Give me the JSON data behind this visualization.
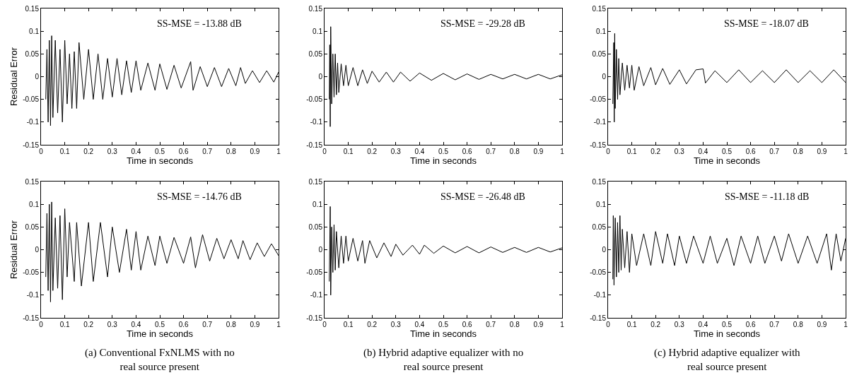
{
  "chart_data": [
    {
      "type": "line",
      "ylabel": "Residual Error",
      "xlabel": "Time in seconds",
      "annotations": [
        "SS-MSE = -13.88 dB"
      ],
      "xlim": [
        0,
        1
      ],
      "ylim": [
        -0.15,
        0.15
      ],
      "xticks": [
        0,
        0.1,
        0.2,
        0.3,
        0.4,
        0.5,
        0.6,
        0.7,
        0.8,
        0.9,
        1
      ],
      "yticks": [
        -0.15,
        -0.1,
        -0.05,
        0,
        0.05,
        0.1,
        0.15
      ],
      "marker": "none",
      "line_style": "solid",
      "series": [
        {
          "color": "#000000",
          "x": [
            0.02,
            0.025,
            0.03,
            0.035,
            0.04,
            0.045,
            0.05,
            0.06,
            0.07,
            0.08,
            0.09,
            0.1,
            0.11,
            0.12,
            0.13,
            0.14,
            0.15,
            0.16,
            0.18,
            0.2,
            0.22,
            0.24,
            0.26,
            0.28,
            0.3,
            0.32,
            0.34,
            0.36,
            0.38,
            0.4,
            0.42,
            0.45,
            0.48,
            0.5,
            0.53,
            0.56,
            0.59,
            0.63,
            0.64,
            0.67,
            0.7,
            0.73,
            0.76,
            0.79,
            0.82,
            0.84,
            0.86,
            0.89,
            0.92,
            0.95,
            0.98,
            1.0
          ],
          "values": [
            -0.05,
            0.06,
            -0.1,
            0.08,
            -0.108,
            0.09,
            -0.09,
            0.08,
            -0.08,
            0.06,
            -0.1,
            0.08,
            -0.06,
            0.05,
            -0.07,
            0.055,
            -0.07,
            0.075,
            -0.05,
            0.06,
            -0.05,
            0.05,
            -0.05,
            0.04,
            -0.045,
            0.04,
            -0.04,
            0.035,
            -0.035,
            0.035,
            -0.03,
            0.03,
            -0.03,
            0.028,
            -0.028,
            0.025,
            -0.025,
            0.033,
            -0.03,
            0.022,
            -0.022,
            0.02,
            -0.022,
            0.018,
            -0.02,
            0.02,
            -0.015,
            0.013,
            -0.013,
            0.013,
            -0.012,
            0.01
          ]
        }
      ]
    },
    {
      "type": "line",
      "xlabel": "Time in seconds",
      "annotations": [
        "SS-MSE = -29.28 dB"
      ],
      "xlim": [
        0,
        1
      ],
      "ylim": [
        -0.15,
        0.15
      ],
      "xticks": [
        0,
        0.1,
        0.2,
        0.3,
        0.4,
        0.5,
        0.6,
        0.7,
        0.8,
        0.9,
        1
      ],
      "yticks": [
        -0.15,
        -0.1,
        -0.05,
        0,
        0.05,
        0.1,
        0.15
      ],
      "marker": "none",
      "line_style": "solid",
      "series": [
        {
          "color": "#000000",
          "x": [
            0.02,
            0.022,
            0.024,
            0.026,
            0.03,
            0.035,
            0.04,
            0.045,
            0.05,
            0.055,
            0.06,
            0.07,
            0.08,
            0.09,
            0.1,
            0.12,
            0.14,
            0.16,
            0.18,
            0.2,
            0.23,
            0.26,
            0.29,
            0.32,
            0.36,
            0.4,
            0.45,
            0.5,
            0.55,
            0.6,
            0.65,
            0.7,
            0.75,
            0.8,
            0.85,
            0.9,
            0.95,
            1.0
          ],
          "values": [
            -0.05,
            0.07,
            -0.11,
            0.11,
            -0.06,
            0.05,
            -0.045,
            0.05,
            -0.04,
            0.03,
            -0.035,
            0.028,
            -0.02,
            0.025,
            -0.02,
            0.02,
            -0.02,
            0.015,
            -0.015,
            0.012,
            -0.012,
            0.01,
            -0.012,
            0.01,
            -0.01,
            0.008,
            -0.008,
            0.007,
            -0.007,
            0.006,
            -0.006,
            0.005,
            -0.005,
            0.005,
            -0.005,
            0.005,
            -0.005,
            0.004
          ]
        }
      ]
    },
    {
      "type": "line",
      "xlabel": "Time in seconds",
      "annotations": [
        "SS-MSE = -18.07 dB"
      ],
      "xlim": [
        0,
        1
      ],
      "ylim": [
        -0.15,
        0.15
      ],
      "xticks": [
        0,
        0.1,
        0.2,
        0.3,
        0.4,
        0.5,
        0.6,
        0.7,
        0.8,
        0.9,
        1
      ],
      "yticks": [
        -0.15,
        -0.1,
        -0.05,
        0,
        0.05,
        0.1,
        0.15
      ],
      "marker": "none",
      "line_style": "solid",
      "series": [
        {
          "color": "#000000",
          "x": [
            0.02,
            0.024,
            0.026,
            0.028,
            0.03,
            0.035,
            0.04,
            0.045,
            0.05,
            0.06,
            0.07,
            0.08,
            0.09,
            0.1,
            0.11,
            0.13,
            0.15,
            0.18,
            0.2,
            0.23,
            0.26,
            0.3,
            0.33,
            0.37,
            0.4,
            0.41,
            0.45,
            0.5,
            0.55,
            0.6,
            0.65,
            0.7,
            0.75,
            0.8,
            0.85,
            0.9,
            0.95,
            1.0
          ],
          "values": [
            -0.06,
            0.075,
            -0.1,
            0.095,
            -0.07,
            0.06,
            -0.05,
            0.04,
            -0.04,
            0.03,
            -0.03,
            0.025,
            -0.025,
            0.025,
            -0.03,
            0.022,
            -0.02,
            0.02,
            -0.018,
            0.018,
            -0.017,
            0.015,
            -0.016,
            0.015,
            0.017,
            -0.014,
            0.013,
            -0.013,
            0.015,
            -0.013,
            0.013,
            -0.013,
            0.015,
            -0.013,
            0.013,
            -0.013,
            0.015,
            -0.013
          ]
        }
      ]
    },
    {
      "type": "line",
      "ylabel": "Residual Error",
      "xlabel": "Time in seconds",
      "annotations": [
        "SS-MSE = -14.76 dB",
        "(a) Conventional FxNLMS with no\nreal source present"
      ],
      "xlim": [
        0,
        1
      ],
      "ylim": [
        -0.15,
        0.15
      ],
      "xticks": [
        0,
        0.1,
        0.2,
        0.3,
        0.4,
        0.5,
        0.6,
        0.7,
        0.8,
        0.9,
        1
      ],
      "yticks": [
        -0.15,
        -0.1,
        -0.05,
        0,
        0.05,
        0.1,
        0.15
      ],
      "marker": "none",
      "line_style": "solid",
      "series": [
        {
          "color": "#000000",
          "x": [
            0.02,
            0.025,
            0.03,
            0.035,
            0.04,
            0.045,
            0.05,
            0.06,
            0.07,
            0.08,
            0.09,
            0.1,
            0.11,
            0.12,
            0.14,
            0.15,
            0.17,
            0.2,
            0.22,
            0.25,
            0.28,
            0.3,
            0.33,
            0.36,
            0.38,
            0.4,
            0.42,
            0.45,
            0.48,
            0.5,
            0.53,
            0.56,
            0.6,
            0.63,
            0.65,
            0.68,
            0.71,
            0.74,
            0.77,
            0.8,
            0.83,
            0.85,
            0.88,
            0.91,
            0.94,
            0.97,
            1.0
          ],
          "values": [
            -0.06,
            0.08,
            -0.09,
            0.1,
            -0.115,
            0.105,
            -0.09,
            0.07,
            -0.085,
            0.075,
            -0.11,
            0.09,
            -0.06,
            0.06,
            -0.07,
            0.06,
            -0.08,
            0.06,
            -0.07,
            0.06,
            -0.06,
            0.05,
            -0.05,
            0.045,
            -0.045,
            0.04,
            -0.045,
            0.03,
            -0.035,
            0.03,
            -0.03,
            0.027,
            -0.03,
            0.028,
            -0.04,
            0.033,
            -0.025,
            0.025,
            -0.02,
            0.022,
            -0.02,
            0.02,
            -0.022,
            0.015,
            -0.015,
            0.013,
            -0.013
          ]
        }
      ]
    },
    {
      "type": "line",
      "xlabel": "Time in seconds",
      "annotations": [
        "SS-MSE = -26.48 dB",
        "(b) Hybrid adaptive equalizer with no\nreal source present"
      ],
      "xlim": [
        0,
        1
      ],
      "ylim": [
        -0.15,
        0.15
      ],
      "xticks": [
        0,
        0.1,
        0.2,
        0.3,
        0.4,
        0.5,
        0.6,
        0.7,
        0.8,
        0.9,
        1
      ],
      "yticks": [
        -0.15,
        -0.1,
        -0.05,
        0,
        0.05,
        0.1,
        0.15
      ],
      "marker": "none",
      "line_style": "solid",
      "series": [
        {
          "color": "#000000",
          "x": [
            0.02,
            0.024,
            0.026,
            0.03,
            0.035,
            0.04,
            0.045,
            0.05,
            0.06,
            0.07,
            0.08,
            0.09,
            0.1,
            0.12,
            0.14,
            0.16,
            0.17,
            0.19,
            0.22,
            0.25,
            0.28,
            0.3,
            0.33,
            0.37,
            0.4,
            0.42,
            0.46,
            0.5,
            0.55,
            0.6,
            0.65,
            0.7,
            0.75,
            0.8,
            0.85,
            0.9,
            0.95,
            1.0
          ],
          "values": [
            -0.07,
            0.095,
            -0.1,
            0.05,
            -0.05,
            0.055,
            -0.045,
            0.04,
            -0.04,
            0.03,
            -0.03,
            0.03,
            -0.025,
            0.025,
            -0.025,
            0.02,
            -0.03,
            0.02,
            -0.018,
            0.015,
            -0.015,
            0.012,
            -0.012,
            0.01,
            -0.01,
            0.01,
            -0.008,
            0.008,
            -0.007,
            0.007,
            -0.007,
            0.006,
            -0.006,
            0.005,
            -0.006,
            0.005,
            -0.005,
            0.004
          ]
        }
      ]
    },
    {
      "type": "line",
      "xlabel": "Time in seconds",
      "annotations": [
        "SS-MSE = -11.18 dB",
        "(c) Hybrid adaptive equalizer with\nreal source present"
      ],
      "xlim": [
        0,
        1
      ],
      "ylim": [
        -0.15,
        0.15
      ],
      "xticks": [
        0,
        0.1,
        0.2,
        0.3,
        0.4,
        0.5,
        0.6,
        0.7,
        0.8,
        0.9,
        1
      ],
      "yticks": [
        -0.15,
        -0.1,
        -0.05,
        0,
        0.05,
        0.1,
        0.15
      ],
      "marker": "none",
      "line_style": "solid",
      "series": [
        {
          "color": "#000000",
          "x": [
            0.02,
            0.022,
            0.025,
            0.03,
            0.035,
            0.04,
            0.045,
            0.05,
            0.055,
            0.06,
            0.07,
            0.08,
            0.09,
            0.1,
            0.12,
            0.15,
            0.18,
            0.2,
            0.23,
            0.25,
            0.28,
            0.3,
            0.33,
            0.36,
            0.4,
            0.43,
            0.46,
            0.5,
            0.53,
            0.56,
            0.6,
            0.63,
            0.66,
            0.7,
            0.73,
            0.76,
            0.8,
            0.84,
            0.88,
            0.92,
            0.94,
            0.96,
            0.98,
            1.0
          ],
          "values": [
            -0.065,
            0.075,
            -0.078,
            0.07,
            -0.06,
            0.06,
            -0.05,
            0.075,
            -0.045,
            0.045,
            -0.04,
            0.04,
            -0.05,
            0.035,
            -0.035,
            0.035,
            -0.035,
            0.04,
            -0.03,
            0.035,
            -0.035,
            0.03,
            -0.03,
            0.03,
            -0.03,
            0.03,
            -0.03,
            0.025,
            -0.035,
            0.03,
            -0.03,
            0.03,
            -0.03,
            0.03,
            -0.025,
            0.035,
            -0.03,
            0.03,
            -0.03,
            0.035,
            -0.045,
            0.035,
            -0.025,
            0.025
          ]
        }
      ]
    }
  ]
}
